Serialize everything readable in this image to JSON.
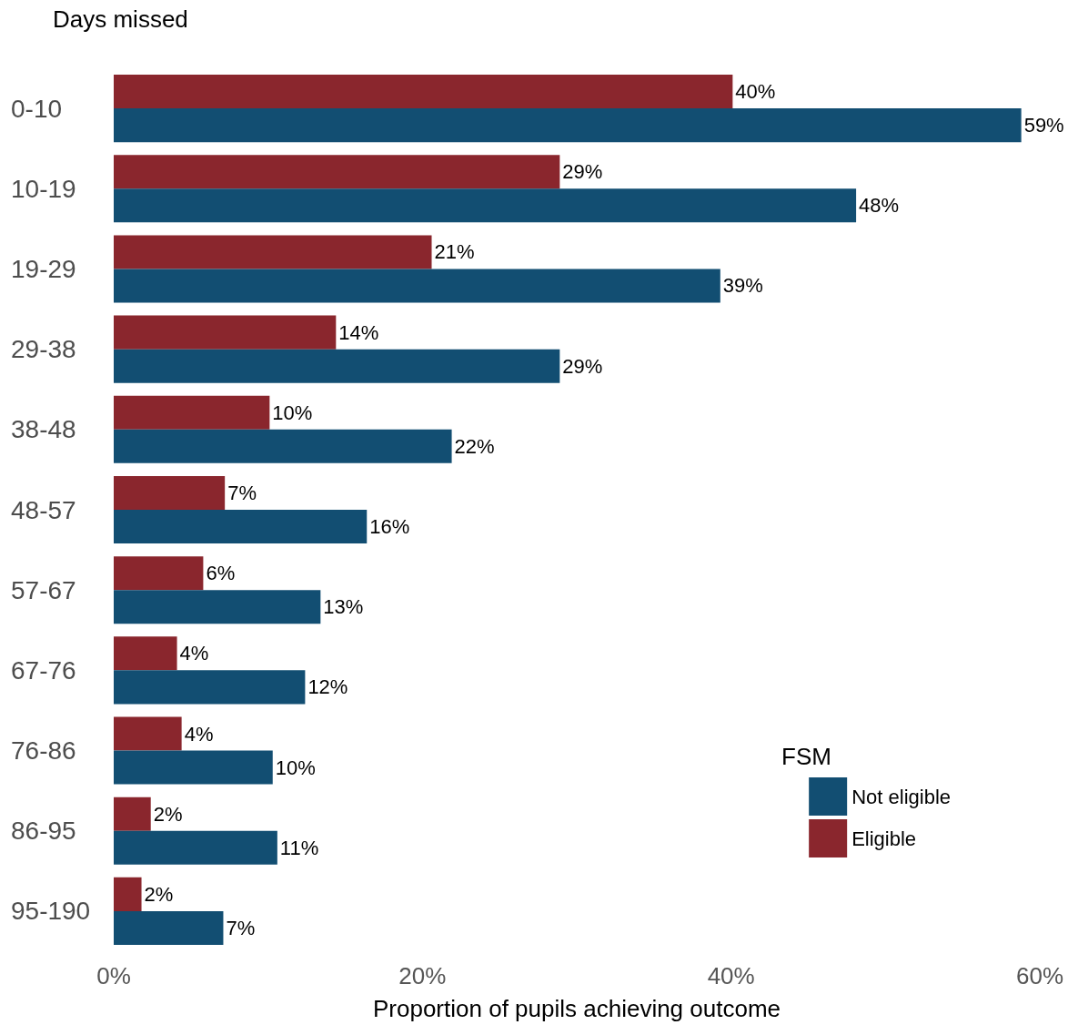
{
  "chart_data": {
    "type": "bar",
    "orientation": "horizontal",
    "ylabel": "Days missed",
    "xlabel": "Proportion of pupils achieving outcome",
    "legend_title": "FSM",
    "legend": "bottom right",
    "grid": false,
    "categories": [
      "0-10",
      "10-19",
      "19-29",
      "29-38",
      "38-48",
      "48-57",
      "57-67",
      "67-76",
      "76-86",
      "86-95",
      "95-190"
    ],
    "series": [
      {
        "name": "Not eligible",
        "color": "#124e72",
        "values": [
          58.8,
          48.1,
          39.3,
          28.9,
          21.9,
          16.4,
          13.4,
          12.4,
          10.3,
          10.6,
          7.1
        ],
        "value_labels": [
          "59%",
          "48%",
          "39%",
          "29%",
          "22%",
          "16%",
          "13%",
          "12%",
          "10%",
          "11%",
          "7%"
        ]
      },
      {
        "name": "Eligible",
        "color": "#8a262d",
        "values": [
          40.1,
          28.9,
          20.6,
          14.4,
          10.1,
          7.2,
          5.8,
          4.1,
          4.4,
          2.4,
          1.8
        ],
        "value_labels": [
          "40%",
          "29%",
          "21%",
          "14%",
          "10%",
          "7%",
          "6%",
          "4%",
          "4%",
          "2%",
          "2%"
        ]
      }
    ],
    "xlim": [
      0,
      60
    ],
    "xticks": [
      {
        "value": 0,
        "label": "0%"
      },
      {
        "value": 20,
        "label": "20%"
      },
      {
        "value": 40,
        "label": "40%"
      },
      {
        "value": 60,
        "label": "60%"
      }
    ]
  }
}
